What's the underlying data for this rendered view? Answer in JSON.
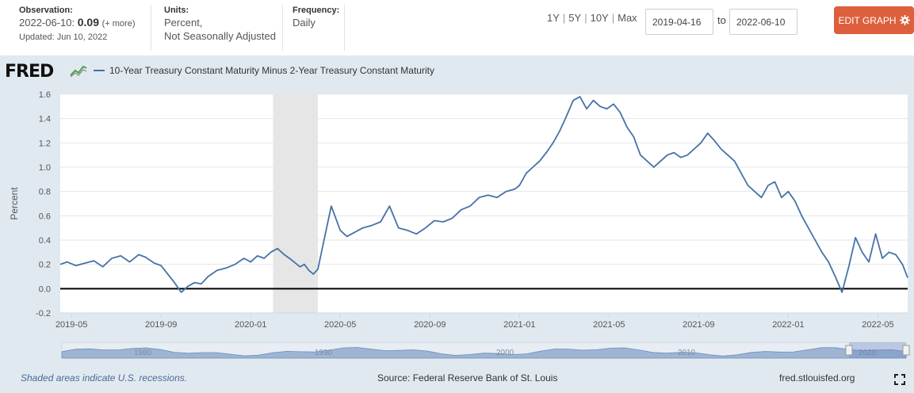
{
  "header": {
    "observation_label": "Observation:",
    "observation_date": "2022-06-10:",
    "observation_value": "0.09",
    "more_link": "(+ more)",
    "updated": "Updated: Jun 10, 2022",
    "units_label": "Units:",
    "units_line1": "Percent,",
    "units_line2": "Not Seasonally Adjusted",
    "frequency_label": "Frequency:",
    "frequency_value": "Daily",
    "range_1y": "1Y",
    "range_5y": "5Y",
    "range_10y": "10Y",
    "range_max": "Max",
    "range_sep": "|",
    "start_date": "2019-04-16",
    "to_label": "to",
    "end_date": "2022-06-10",
    "edit_graph": "EDIT GRAPH"
  },
  "logo": {
    "text": "FRED"
  },
  "colors": {
    "series": "#4572a7",
    "accent": "#dd5f3d",
    "panel": "#e1e9f0",
    "recession": "#e6e6e6"
  },
  "footer": {
    "recession_note": "Shaded areas indicate U.S. recessions.",
    "source": "Source: Federal Reserve Bank of St. Louis",
    "url": "fred.stlouisfed.org"
  },
  "navigator": {
    "labels": [
      "1980",
      "1990",
      "2000",
      "2010",
      "2020"
    ]
  },
  "chart_data": {
    "type": "line",
    "legend": "10-Year Treasury Constant Maturity Minus 2-Year Treasury Constant Maturity",
    "ylabel": "Percent",
    "xlabel": "",
    "ylim": [
      -0.2,
      1.6
    ],
    "yticks": [
      "1.6",
      "1.4",
      "1.2",
      "1.0",
      "0.8",
      "0.6",
      "0.4",
      "0.2",
      "0.0",
      "-0.2"
    ],
    "yticks_values": [
      1.6,
      1.4,
      1.2,
      1.0,
      0.8,
      0.6,
      0.4,
      0.2,
      0.0,
      -0.2
    ],
    "xticks": [
      "2019-05",
      "2019-09",
      "2020-01",
      "2020-05",
      "2020-09",
      "2021-01",
      "2021-05",
      "2021-09",
      "2022-01",
      "2022-05"
    ],
    "xticks_months": [
      1,
      5,
      9,
      13,
      17,
      21,
      25,
      29,
      33,
      37
    ],
    "x_units": "months since 2019-04",
    "x_range": [
      0.5,
      38.33
    ],
    "recession": {
      "start": 10.0,
      "end": 12.0
    },
    "series": [
      {
        "name": "10-Year Treasury Constant Maturity Minus 2-Year Treasury Constant Maturity",
        "x": [
          0.5,
          0.8,
          1.2,
          1.6,
          2.0,
          2.4,
          2.8,
          3.2,
          3.6,
          4.0,
          4.3,
          4.7,
          5.0,
          5.3,
          5.6,
          5.9,
          6.2,
          6.5,
          6.8,
          7.1,
          7.5,
          7.9,
          8.3,
          8.7,
          9.0,
          9.3,
          9.6,
          9.9,
          10.2,
          10.5,
          10.8,
          11.0,
          11.2,
          11.4,
          11.6,
          11.8,
          12.0,
          12.3,
          12.6,
          13.0,
          13.3,
          13.6,
          14.0,
          14.4,
          14.8,
          15.2,
          15.6,
          16.0,
          16.4,
          16.8,
          17.2,
          17.6,
          18.0,
          18.4,
          18.8,
          19.2,
          19.6,
          20.0,
          20.4,
          20.8,
          21.0,
          21.3,
          21.6,
          21.9,
          22.2,
          22.5,
          22.8,
          23.1,
          23.4,
          23.7,
          24.0,
          24.3,
          24.6,
          24.9,
          25.2,
          25.5,
          25.8,
          26.1,
          26.4,
          26.7,
          27.0,
          27.3,
          27.6,
          27.9,
          28.2,
          28.5,
          28.8,
          29.1,
          29.4,
          29.7,
          30.0,
          30.3,
          30.6,
          30.9,
          31.2,
          31.5,
          31.8,
          32.1,
          32.4,
          32.7,
          33.0,
          33.3,
          33.6,
          33.9,
          34.2,
          34.5,
          34.8,
          35.1,
          35.4,
          35.7,
          36.0,
          36.3,
          36.6,
          36.9,
          37.2,
          37.5,
          37.8,
          38.1,
          38.33
        ],
        "values": [
          0.2,
          0.22,
          0.19,
          0.21,
          0.23,
          0.18,
          0.25,
          0.27,
          0.22,
          0.28,
          0.26,
          0.21,
          0.19,
          0.12,
          0.05,
          -0.03,
          0.02,
          0.05,
          0.04,
          0.1,
          0.15,
          0.17,
          0.2,
          0.25,
          0.22,
          0.27,
          0.25,
          0.3,
          0.33,
          0.28,
          0.24,
          0.21,
          0.18,
          0.2,
          0.15,
          0.12,
          0.16,
          0.42,
          0.68,
          0.48,
          0.43,
          0.46,
          0.5,
          0.52,
          0.55,
          0.68,
          0.5,
          0.48,
          0.45,
          0.5,
          0.56,
          0.55,
          0.58,
          0.65,
          0.68,
          0.75,
          0.77,
          0.75,
          0.8,
          0.82,
          0.85,
          0.95,
          1.0,
          1.05,
          1.12,
          1.2,
          1.3,
          1.42,
          1.55,
          1.58,
          1.48,
          1.55,
          1.5,
          1.48,
          1.52,
          1.45,
          1.33,
          1.25,
          1.1,
          1.05,
          1.0,
          1.05,
          1.1,
          1.12,
          1.08,
          1.1,
          1.15,
          1.2,
          1.28,
          1.22,
          1.15,
          1.1,
          1.05,
          0.95,
          0.85,
          0.8,
          0.75,
          0.85,
          0.88,
          0.75,
          0.8,
          0.72,
          0.6,
          0.5,
          0.4,
          0.3,
          0.22,
          0.1,
          -0.03,
          0.18,
          0.42,
          0.3,
          0.22,
          0.45,
          0.25,
          0.3,
          0.28,
          0.2,
          0.09
        ]
      }
    ]
  }
}
